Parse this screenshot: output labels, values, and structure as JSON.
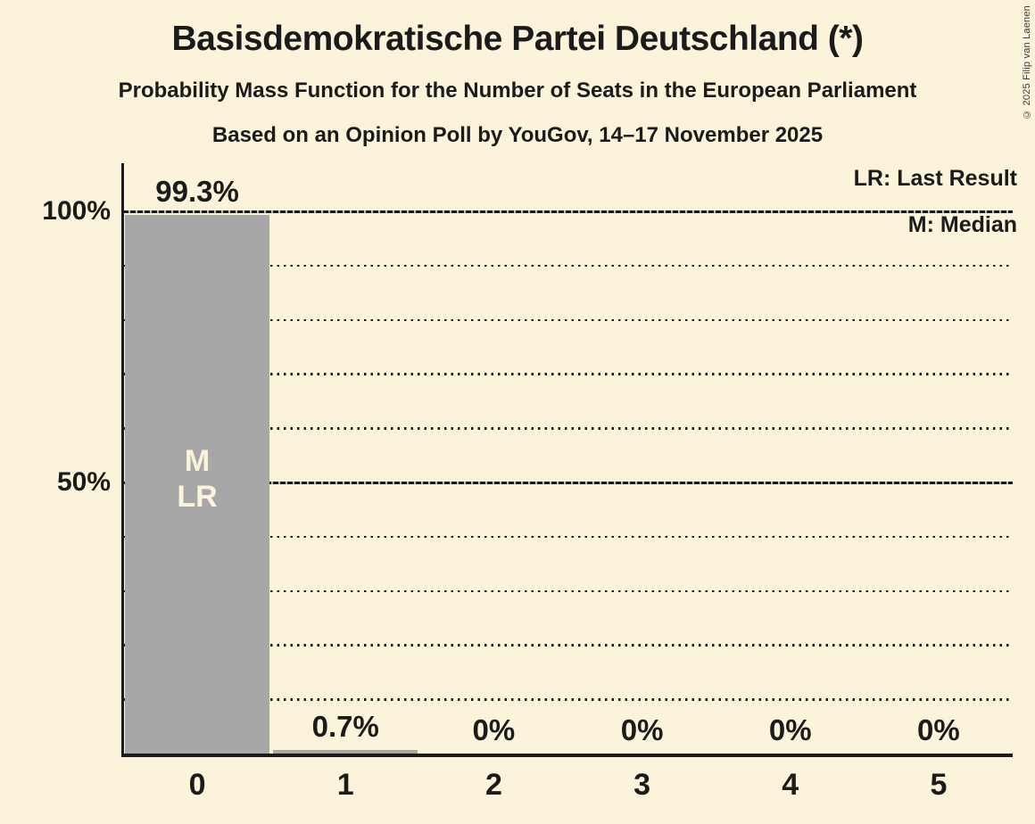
{
  "header": {
    "title": "Basisdemokratische Partei Deutschland (*)",
    "subtitle": "Probability Mass Function for the Number of Seats in the European Parliament",
    "poll_info": "Based on an Opinion Poll by YouGov, 14–17 November 2025"
  },
  "legend": {
    "last_result": "LR: Last Result",
    "median": "M: Median"
  },
  "copyright": "© 2025 Filip van Laenen",
  "colors": {
    "background": "#FBF3DA",
    "bar": "#A7A7A7",
    "text": "#1B1B1B",
    "annotation_text": "#FBF3DA"
  },
  "chart_data": {
    "type": "bar",
    "title": "Basisdemokratische Partei Deutschland (*)",
    "categories": [
      "0",
      "1",
      "2",
      "3",
      "4",
      "5"
    ],
    "values": [
      99.3,
      0.7,
      0,
      0,
      0,
      0
    ],
    "value_labels": [
      "99.3%",
      "0.7%",
      "0%",
      "0%",
      "0%",
      "0%"
    ],
    "ylim": [
      0,
      100
    ],
    "yticks": [
      {
        "value": 100,
        "label": "100%"
      },
      {
        "value": 50,
        "label": "50%"
      }
    ],
    "major_gridlines": [
      100,
      50
    ],
    "minor_gridlines": [
      90,
      80,
      70,
      60,
      40,
      30,
      20,
      10
    ],
    "grid": "horizontal",
    "legend_position": "top-right",
    "annotations": [
      {
        "category": "0",
        "lines": [
          "M",
          "LR"
        ]
      }
    ]
  }
}
